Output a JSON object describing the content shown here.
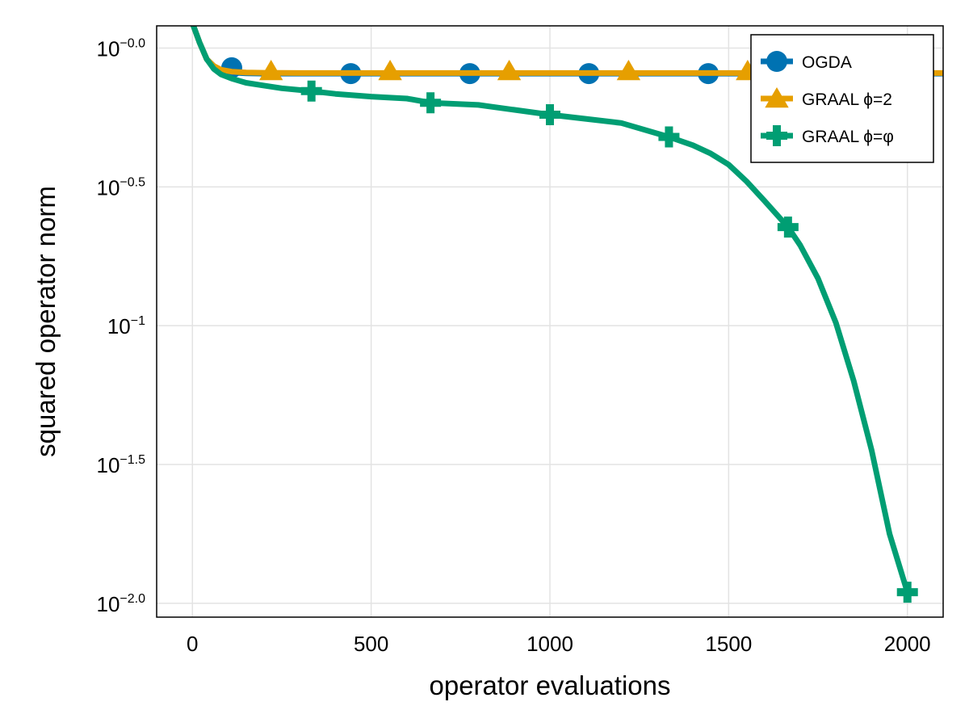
{
  "chart_data": {
    "type": "line",
    "xlabel": "operator evaluations",
    "ylabel": "squared operator norm",
    "xlim": [
      -100,
      2100
    ],
    "ylim_log10": [
      -2.05,
      0.08
    ],
    "y_scale": "log10",
    "grid": true,
    "legend_position": "top-right",
    "x_ticks": [
      0,
      500,
      1000,
      1500,
      2000
    ],
    "y_ticks": [
      {
        "value_log10": 0.0,
        "base": "10",
        "exponent": "−0.0"
      },
      {
        "value_log10": -0.5,
        "base": "10",
        "exponent": "−0.5"
      },
      {
        "value_log10": -1.0,
        "base": "10",
        "exponent": "−1"
      },
      {
        "value_log10": -1.5,
        "base": "10",
        "exponent": "−1.5"
      },
      {
        "value_log10": -2.0,
        "base": "10",
        "exponent": "−2.0"
      }
    ],
    "series": [
      {
        "name": "OGDA",
        "color": "#0072b2",
        "marker": "circle",
        "x": [
          0,
          20,
          40,
          60,
          80,
          110,
          150,
          200,
          300,
          500,
          800,
          1200,
          1600,
          2100
        ],
        "y_log10": [
          0.09,
          0.02,
          -0.04,
          -0.065,
          -0.08,
          -0.088,
          -0.091,
          -0.092,
          -0.092,
          -0.092,
          -0.092,
          -0.092,
          -0.092,
          -0.092
        ],
        "marker_x": [
          110,
          443,
          776,
          1109,
          1443
        ],
        "marker_y_log10": [
          -0.071,
          -0.092,
          -0.092,
          -0.092,
          -0.092
        ]
      },
      {
        "name": "GRAAL ϕ=2",
        "color": "#e69f00",
        "marker": "triangle",
        "x": [
          0,
          20,
          40,
          60,
          80,
          110,
          150,
          200,
          300,
          500,
          800,
          1200,
          1600,
          2100
        ],
        "y_log10": [
          0.09,
          0.02,
          -0.04,
          -0.065,
          -0.078,
          -0.085,
          -0.088,
          -0.089,
          -0.09,
          -0.09,
          -0.09,
          -0.09,
          -0.09,
          -0.09
        ],
        "marker_x": [
          220,
          553,
          886,
          1220,
          1553
        ],
        "marker_y_log10": [
          -0.083,
          -0.083,
          -0.083,
          -0.083,
          -0.083
        ]
      },
      {
        "name": "GRAAL ϕ=φ",
        "color": "#009e73",
        "marker": "cross",
        "x": [
          0,
          20,
          40,
          60,
          80,
          110,
          150,
          200,
          250,
          333,
          400,
          500,
          600,
          666,
          800,
          1000,
          1100,
          1200,
          1333,
          1400,
          1450,
          1500,
          1550,
          1600,
          1666,
          1700,
          1750,
          1800,
          1850,
          1900,
          1950,
          2000
        ],
        "y_log10": [
          0.09,
          0.02,
          -0.04,
          -0.075,
          -0.095,
          -0.11,
          -0.125,
          -0.135,
          -0.145,
          -0.155,
          -0.165,
          -0.175,
          -0.182,
          -0.197,
          -0.205,
          -0.24,
          -0.255,
          -0.27,
          -0.32,
          -0.35,
          -0.38,
          -0.42,
          -0.48,
          -0.55,
          -0.645,
          -0.71,
          -0.83,
          -0.99,
          -1.2,
          -1.45,
          -1.75,
          -1.96
        ],
        "marker_x": [
          333,
          666,
          1000,
          1333,
          1666,
          2000
        ],
        "marker_y_log10": [
          -0.155,
          -0.197,
          -0.24,
          -0.32,
          -0.645,
          -1.96
        ]
      }
    ]
  }
}
